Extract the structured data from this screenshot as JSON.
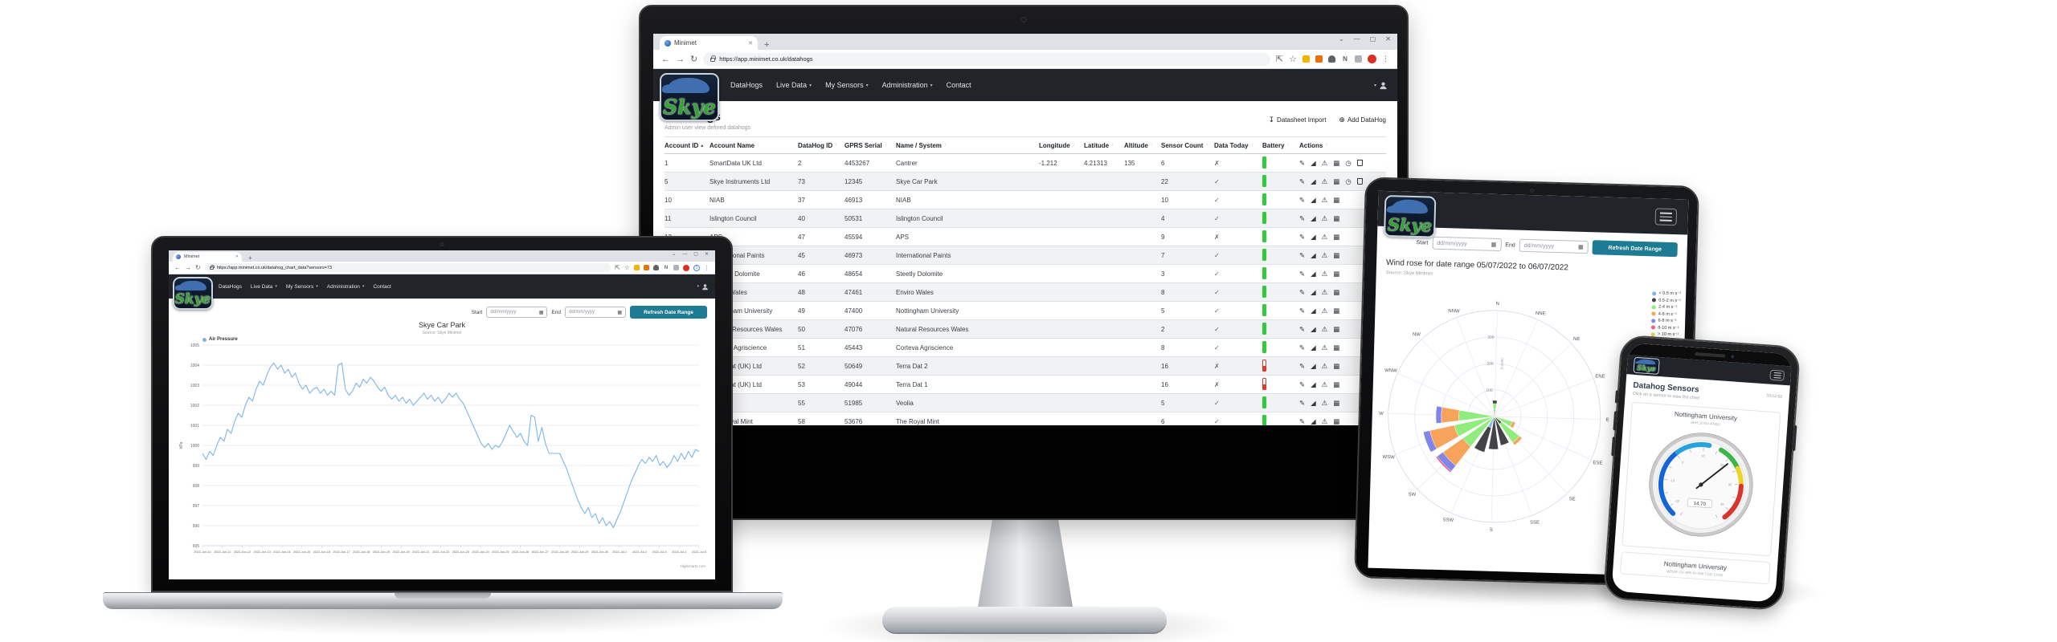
{
  "chrome": {
    "tab_title": "Minimet",
    "window_controls": [
      "⌄",
      "—",
      "▢",
      "✕"
    ],
    "nav_icons": {
      "back": "←",
      "forward": "→",
      "reload": "↻"
    },
    "action_icons": {
      "share": "⇱",
      "bookmark": "☆",
      "kebab": "⋮"
    },
    "extensions": [
      {
        "type": "square",
        "color": "#f4b400"
      },
      {
        "type": "square",
        "color": "#e8710a"
      },
      {
        "type": "puzzle",
        "color": "#5f6368"
      },
      {
        "type": "letter",
        "label": "N"
      },
      {
        "type": "square",
        "color": "#aeb3b9"
      },
      {
        "type": "avatar",
        "color": "#d93025"
      }
    ],
    "extension_badge": "1"
  },
  "nav": {
    "brand": "Skye",
    "items": [
      {
        "label": "DataHogs",
        "caret": false
      },
      {
        "label": "Live Data",
        "caret": true
      },
      {
        "label": "My Sensors",
        "caret": true
      },
      {
        "label": "Administration",
        "caret": true
      },
      {
        "label": "Contact",
        "caret": false
      }
    ]
  },
  "monitor": {
    "url": "https://app.minimet.co.uk/datahogs",
    "page_title": "DataHogs",
    "page_subtitle": "Admin user view defined datahogs",
    "toolbar": {
      "import_icon": "↧",
      "import_label": "Datasheet Import",
      "add_icon": "⊕",
      "add_label": "Add DataHog"
    },
    "sort_asc_icon": "▴",
    "sort_both_icon": "↕",
    "table": {
      "columns": [
        "Account ID",
        "Account Name",
        "DataHog ID",
        "GPRS Serial",
        "Name / System",
        "Longitude",
        "Latitude",
        "Altitude",
        "Sensor Count",
        "Data Today",
        "Battery",
        "Actions"
      ],
      "sorted_column": "Account ID",
      "rows": [
        {
          "cells": [
            "1",
            "SmartData UK Ltd",
            "2",
            "4453267",
            "Cantrer",
            "-1.212",
            "4.21313",
            "135",
            "6"
          ],
          "data_today": "cross",
          "battery": "green",
          "actions": [
            "edit",
            "chart",
            "warning",
            "table",
            "clock",
            "trash"
          ]
        },
        {
          "cells": [
            "5",
            "Skye Instruments Ltd",
            "73",
            "12345",
            "Skye Car Park",
            "",
            "",
            "",
            "22"
          ],
          "data_today": "check",
          "battery": "green",
          "actions": [
            "edit",
            "chart",
            "warning",
            "table",
            "clock",
            "trash"
          ]
        },
        {
          "cells": [
            "10",
            "NIAB",
            "37",
            "46913",
            "NIAB",
            "",
            "",
            "",
            "10"
          ],
          "data_today": "check",
          "battery": "green",
          "actions": [
            "edit",
            "chart",
            "warning",
            "table"
          ]
        },
        {
          "cells": [
            "11",
            "Islington Council",
            "40",
            "50531",
            "Islington Council",
            "",
            "",
            "",
            "4"
          ],
          "data_today": "check",
          "battery": "green",
          "actions": [
            "edit",
            "chart",
            "warning",
            "table"
          ]
        },
        {
          "cells": [
            "13",
            "APS",
            "47",
            "45594",
            "APS",
            "",
            "",
            "",
            "9"
          ],
          "data_today": "cross",
          "battery": "green",
          "actions": [
            "edit",
            "chart",
            "warning",
            "table"
          ]
        },
        {
          "cells": [
            "",
            "International Paints",
            "45",
            "46973",
            "International Paints",
            "",
            "",
            "",
            "7"
          ],
          "data_today": "check",
          "battery": "green",
          "actions": [
            "edit",
            "chart",
            "warning",
            "table"
          ]
        },
        {
          "cells": [
            "",
            "Steetley Dolomite",
            "46",
            "48654",
            "Steetly Dolomite",
            "",
            "",
            "",
            "3"
          ],
          "data_today": "check",
          "battery": "green",
          "actions": [
            "edit",
            "chart",
            "warning",
            "table"
          ]
        },
        {
          "cells": [
            "",
            "Enviro Wales",
            "48",
            "47461",
            "Enviro Wales",
            "",
            "",
            "",
            "8"
          ],
          "data_today": "check",
          "battery": "green",
          "actions": [
            "edit",
            "chart",
            "warning",
            "table"
          ]
        },
        {
          "cells": [
            "",
            "Nottingham University",
            "49",
            "47400",
            "Nottingham University",
            "",
            "",
            "",
            "5"
          ],
          "data_today": "check",
          "battery": "green",
          "actions": [
            "edit",
            "chart",
            "warning",
            "table"
          ]
        },
        {
          "cells": [
            "",
            "Natural Resources Wales",
            "50",
            "47076",
            "Natural Resources Wales",
            "",
            "",
            "",
            "2"
          ],
          "data_today": "check",
          "battery": "green",
          "actions": [
            "edit",
            "chart",
            "warning",
            "table"
          ]
        },
        {
          "cells": [
            "",
            "Corteva Agriscience",
            "51",
            "45443",
            "Corteva Agriscience",
            "",
            "",
            "",
            "8"
          ],
          "data_today": "check",
          "battery": "green",
          "actions": [
            "edit",
            "chart",
            "warning",
            "table"
          ]
        },
        {
          "cells": [
            "",
            "Terra Dat (UK) Ltd",
            "52",
            "50649",
            "Terra Dat 2",
            "",
            "",
            "",
            "16"
          ],
          "data_today": "cross",
          "battery": "red",
          "actions": [
            "edit",
            "chart",
            "warning",
            "table"
          ]
        },
        {
          "cells": [
            "",
            "Terra Dat (UK) Ltd",
            "53",
            "49044",
            "Terra Dat 1",
            "",
            "",
            "",
            "16"
          ],
          "data_today": "cross",
          "battery": "red",
          "actions": [
            "edit",
            "chart",
            "warning",
            "table"
          ]
        },
        {
          "cells": [
            "",
            "Veolia",
            "55",
            "51985",
            "Veolia",
            "",
            "",
            "",
            "5"
          ],
          "data_today": "check",
          "battery": "green",
          "actions": [
            "edit",
            "chart",
            "warning",
            "table"
          ]
        },
        {
          "cells": [
            "",
            "The Royal Mint",
            "58",
            "53676",
            "The Royal Mint",
            "",
            "",
            "",
            "6"
          ],
          "data_today": "check",
          "battery": "green",
          "actions": [
            "edit",
            "chart",
            "warning",
            "table"
          ]
        }
      ]
    }
  },
  "laptop": {
    "url": "https://app.minimet.co.uk/datahog_chart_data?sensors=73",
    "controls": {
      "start_label": "Start",
      "end_label": "End",
      "date_placeholder": "dd/mm/yyyy",
      "refresh_label": "Refresh Date Range"
    }
  },
  "tablet": {
    "controls": {
      "start_label": "Start",
      "end_label": "End",
      "date_placeholder": "dd/mm/yyyy",
      "refresh_label": "Refresh Date Range"
    },
    "title": "Wind rose for date range 05/07/2022 to 06/07/2022",
    "subtitle": "Source: Skye Minimet"
  },
  "phone": {
    "title": "Datahog Sensors",
    "time": "10:12:53",
    "subtitle": "Click on a sensor to view the chart",
    "cards": [
      {
        "title": "Nottingham University",
        "subtitle": "SKH 2075/I 47400"
      },
      {
        "title": "Nottingham University",
        "subtitle": "W250F-D1-WR 41-295 T232 CV05"
      }
    ]
  },
  "colors": {
    "accent_teal": "#1d7b93",
    "navbar_dark": "#212529",
    "battery_green": "#2fcb3c",
    "battery_red": "#d9342b",
    "series_blue": "#7cb5ec"
  },
  "chart_data": [
    {
      "type": "line",
      "title": "Skye Car Park",
      "subtitle": "Source: Skye Minimet",
      "ylabel": "hPa",
      "ylim": [
        995,
        1005
      ],
      "yticks": [
        995,
        996,
        997,
        998,
        999,
        1000,
        1001,
        1002,
        1003,
        1004,
        1005
      ],
      "grid": true,
      "legend_position": "top-left",
      "credits": "Highcharts.com",
      "series": [
        {
          "name": "Air Pressure",
          "color": "#7cb5ec",
          "values": [
            999.6,
            999.3,
            999.7,
            999.5,
            1000.0,
            1000.4,
            1000.2,
            1000.8,
            1000.6,
            1001.2,
            1001.6,
            1001.4,
            1002.0,
            1002.4,
            1002.2,
            1002.8,
            1003.2,
            1003.0,
            1003.5,
            1003.9,
            1004.1,
            1003.8,
            1004.0,
            1003.6,
            1003.8,
            1003.4,
            1003.6,
            1003.1,
            1002.8,
            1003.0,
            1002.6,
            1002.8,
            1002.9,
            1002.6,
            1002.8,
            1002.5,
            1002.7,
            1002.5,
            1004.0,
            1004.1,
            1002.8,
            1002.5,
            1002.7,
            1003.1,
            1002.9,
            1003.3,
            1003.1,
            1003.4,
            1003.2,
            1002.9,
            1002.7,
            1002.9,
            1002.5,
            1002.3,
            1002.5,
            1002.2,
            1002.4,
            1002.1,
            1002.3,
            1002.0,
            1002.2,
            1002.4,
            1002.6,
            1002.3,
            1002.5,
            1002.2,
            1002.4,
            1002.1,
            1002.3,
            1002.6,
            1002.4,
            1002.6,
            1002.3,
            1002.1,
            1001.7,
            1001.3,
            1000.9,
            1000.5,
            1000.1,
            999.9,
            1000.1,
            999.8,
            1000.0,
            999.9,
            1000.2,
            1000.6,
            1001.0,
            1000.7,
            1000.4,
            1000.6,
            1000.2,
            1000.0,
            1001.5,
            1001.4,
            1000.2,
            1000.9,
            1000.1,
            999.6,
            999.6,
            999.6,
            999.6,
            999.2,
            998.8,
            998.3,
            997.8,
            997.3,
            996.9,
            996.6,
            996.9,
            996.4,
            996.6,
            996.1,
            996.4,
            996.0,
            996.2,
            995.9,
            996.3,
            996.7,
            997.2,
            997.7,
            998.2,
            998.6,
            999.0,
            999.3,
            999.1,
            999.4,
            999.2,
            999.5,
            999.0,
            999.2,
            998.9,
            999.1,
            999.5,
            999.2,
            999.6,
            999.3,
            999.7,
            999.4,
            999.8,
            999.7
          ]
        }
      ],
      "x_labels": [
        "2022-Jun-10",
        "2022-Jun-11",
        "2022-Jun-12",
        "2022-Jun-13",
        "2022-Jun-14",
        "2022-Jun-15",
        "2022-Jun-16",
        "2022-Jun-17",
        "2022-Jun-18",
        "2022-Jun-19",
        "2022-Jun-20",
        "2022-Jun-21",
        "2022-Jun-22",
        "2022-Jun-23",
        "2022-Jun-24",
        "2022-Jun-25",
        "2022-Jun-26",
        "2022-Jun-27",
        "2022-Jun-28",
        "2022-Jun-29",
        "2022-Jun-30",
        "2022-Jul-1",
        "2022-Jul-2",
        "2022-Jul-3",
        "2022-Jul-4",
        "2022-Jul-5"
      ]
    },
    {
      "type": "wind-rose",
      "title": "Wind rose for date range 05/07/2022 to 06/07/2022",
      "directions": [
        "N",
        "NNE",
        "NE",
        "ENE",
        "E",
        "ESE",
        "SE",
        "SSE",
        "S",
        "SSW",
        "SW",
        "WSW",
        "W",
        "WNW",
        "NW",
        "NNW"
      ],
      "ring_max": 400,
      "ring_labels": [
        "100",
        "200",
        "300"
      ],
      "radial_axis_title": "(count)",
      "legend": [
        {
          "label": "< 0.5 m s⁻¹",
          "color": "#7cb5ec"
        },
        {
          "label": "0.5-2 m s⁻¹",
          "color": "#434348"
        },
        {
          "label": "2-4 m s⁻¹",
          "color": "#90ed7d"
        },
        {
          "label": "4-6 m s⁻¹",
          "color": "#f7a35c"
        },
        {
          "label": "6-8 m s⁻¹",
          "color": "#8085e9"
        },
        {
          "label": "8-10 m s⁻¹",
          "color": "#f15c80"
        },
        {
          "label": "> 10 m s⁻¹",
          "color": "#e4d354"
        }
      ],
      "petals": [
        {
          "dir": "N",
          "segments": [
            [
              "#f7a35c",
              14
            ],
            [
              "#7cb5ec",
              8
            ],
            [
              "#90ed7d",
              22
            ],
            [
              "#434348",
              12
            ]
          ]
        },
        {
          "dir": "ESE",
          "segments": [
            [
              "#90ed7d",
              66
            ],
            [
              "#f7a35c",
              12
            ]
          ]
        },
        {
          "dir": "SE",
          "segments": [
            [
              "#434348",
              30
            ],
            [
              "#90ed7d",
              86
            ],
            [
              "#f7a35c",
              12
            ]
          ]
        },
        {
          "dir": "SW",
          "segments": [
            [
              "#90ed7d",
              140
            ],
            [
              "#f7a35c",
              92
            ],
            [
              "#8085e9",
              26
            ],
            [
              "#f15c80",
              6
            ]
          ]
        },
        {
          "dir": "WSW",
          "segments": [
            [
              "#90ed7d",
              150
            ],
            [
              "#f7a35c",
              95
            ],
            [
              "#8085e9",
              25
            ]
          ]
        },
        {
          "dir": "W",
          "segments": [
            [
              "#90ed7d",
              130
            ],
            [
              "#f7a35c",
              66
            ],
            [
              "#8085e9",
              20
            ]
          ]
        },
        {
          "dir": "SSE",
          "segments": [
            [
              "#434348",
              108
            ]
          ]
        },
        {
          "dir": "S",
          "segments": [
            [
              "#434348",
              120
            ]
          ]
        },
        {
          "dir": "SSW",
          "segments": [
            [
              "#7cb5ec",
              40
            ],
            [
              "#434348",
              96
            ]
          ]
        }
      ]
    },
    {
      "type": "gauge",
      "value": "14.70",
      "min": -25,
      "max": 45,
      "needle_angle": 48,
      "bands": [
        {
          "color": "#1565d8",
          "from": -140,
          "to": -40
        },
        {
          "color": "#27a2e0",
          "from": -40,
          "to": 8
        },
        {
          "color": "#3cb54a",
          "from": 26,
          "to": 62
        },
        {
          "color": "#eed32b",
          "from": 62,
          "to": 88
        },
        {
          "color": "#d9342b",
          "from": 88,
          "to": 140
        }
      ],
      "tick_labels": [
        -20,
        -10,
        0,
        10,
        20,
        30,
        40
      ]
    }
  ]
}
